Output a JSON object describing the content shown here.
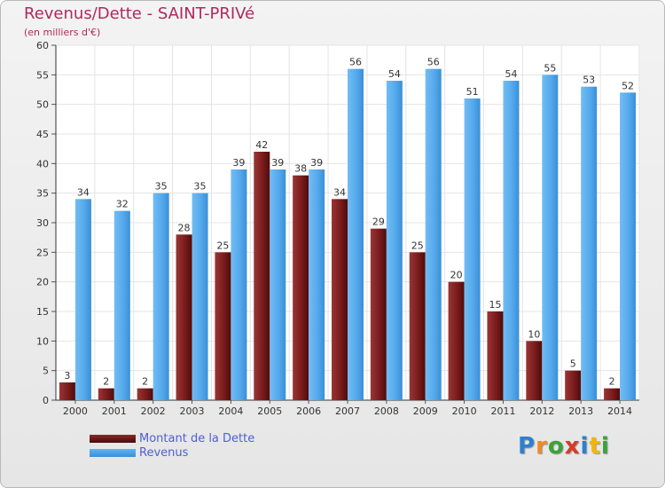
{
  "header": {
    "title": "Revenus/Dette - SAINT-PRIVé",
    "subtitle": "(en milliers d'€)"
  },
  "legend": [
    {
      "label": "Montant de la Dette",
      "color_top": "#8b2a2a",
      "color_bottom": "#4a0808"
    },
    {
      "label": "Revenus",
      "color_top": "#61b3f0",
      "color_bottom": "#3b8fd6"
    }
  ],
  "brand": {
    "letters": [
      "P",
      "r",
      "o",
      "x",
      "i",
      "t",
      "i"
    ],
    "colors": [
      "#2f7fd1",
      "#f08a24",
      "#3aa339",
      "#d8392b",
      "#2f7fd1",
      "#f2b705",
      "#3aa339"
    ]
  },
  "chart_data": {
    "type": "bar",
    "title": "Revenus/Dette - SAINT-PRIVé",
    "subtitle": "(en milliers d'€)",
    "categories": [
      "2000",
      "2001",
      "2002",
      "2003",
      "2004",
      "2005",
      "2006",
      "2007",
      "2008",
      "2009",
      "2010",
      "2011",
      "2012",
      "2013",
      "2014"
    ],
    "series": [
      {
        "name": "Montant de la Dette",
        "color": "#7a1c1c",
        "values": [
          3,
          2,
          2,
          28,
          25,
          42,
          38,
          34,
          29,
          25,
          20,
          15,
          10,
          5,
          2
        ]
      },
      {
        "name": "Revenus",
        "color": "#55a9ec",
        "values": [
          34,
          32,
          35,
          35,
          39,
          39,
          39,
          56,
          54,
          56,
          51,
          54,
          55,
          53,
          52
        ]
      }
    ],
    "ylim": [
      0,
      60
    ],
    "yticks": [
      0,
      5,
      10,
      15,
      20,
      25,
      30,
      35,
      40,
      45,
      50,
      55,
      60
    ],
    "grid": true,
    "legend_position": "bottom-left",
    "data_labels": true
  }
}
